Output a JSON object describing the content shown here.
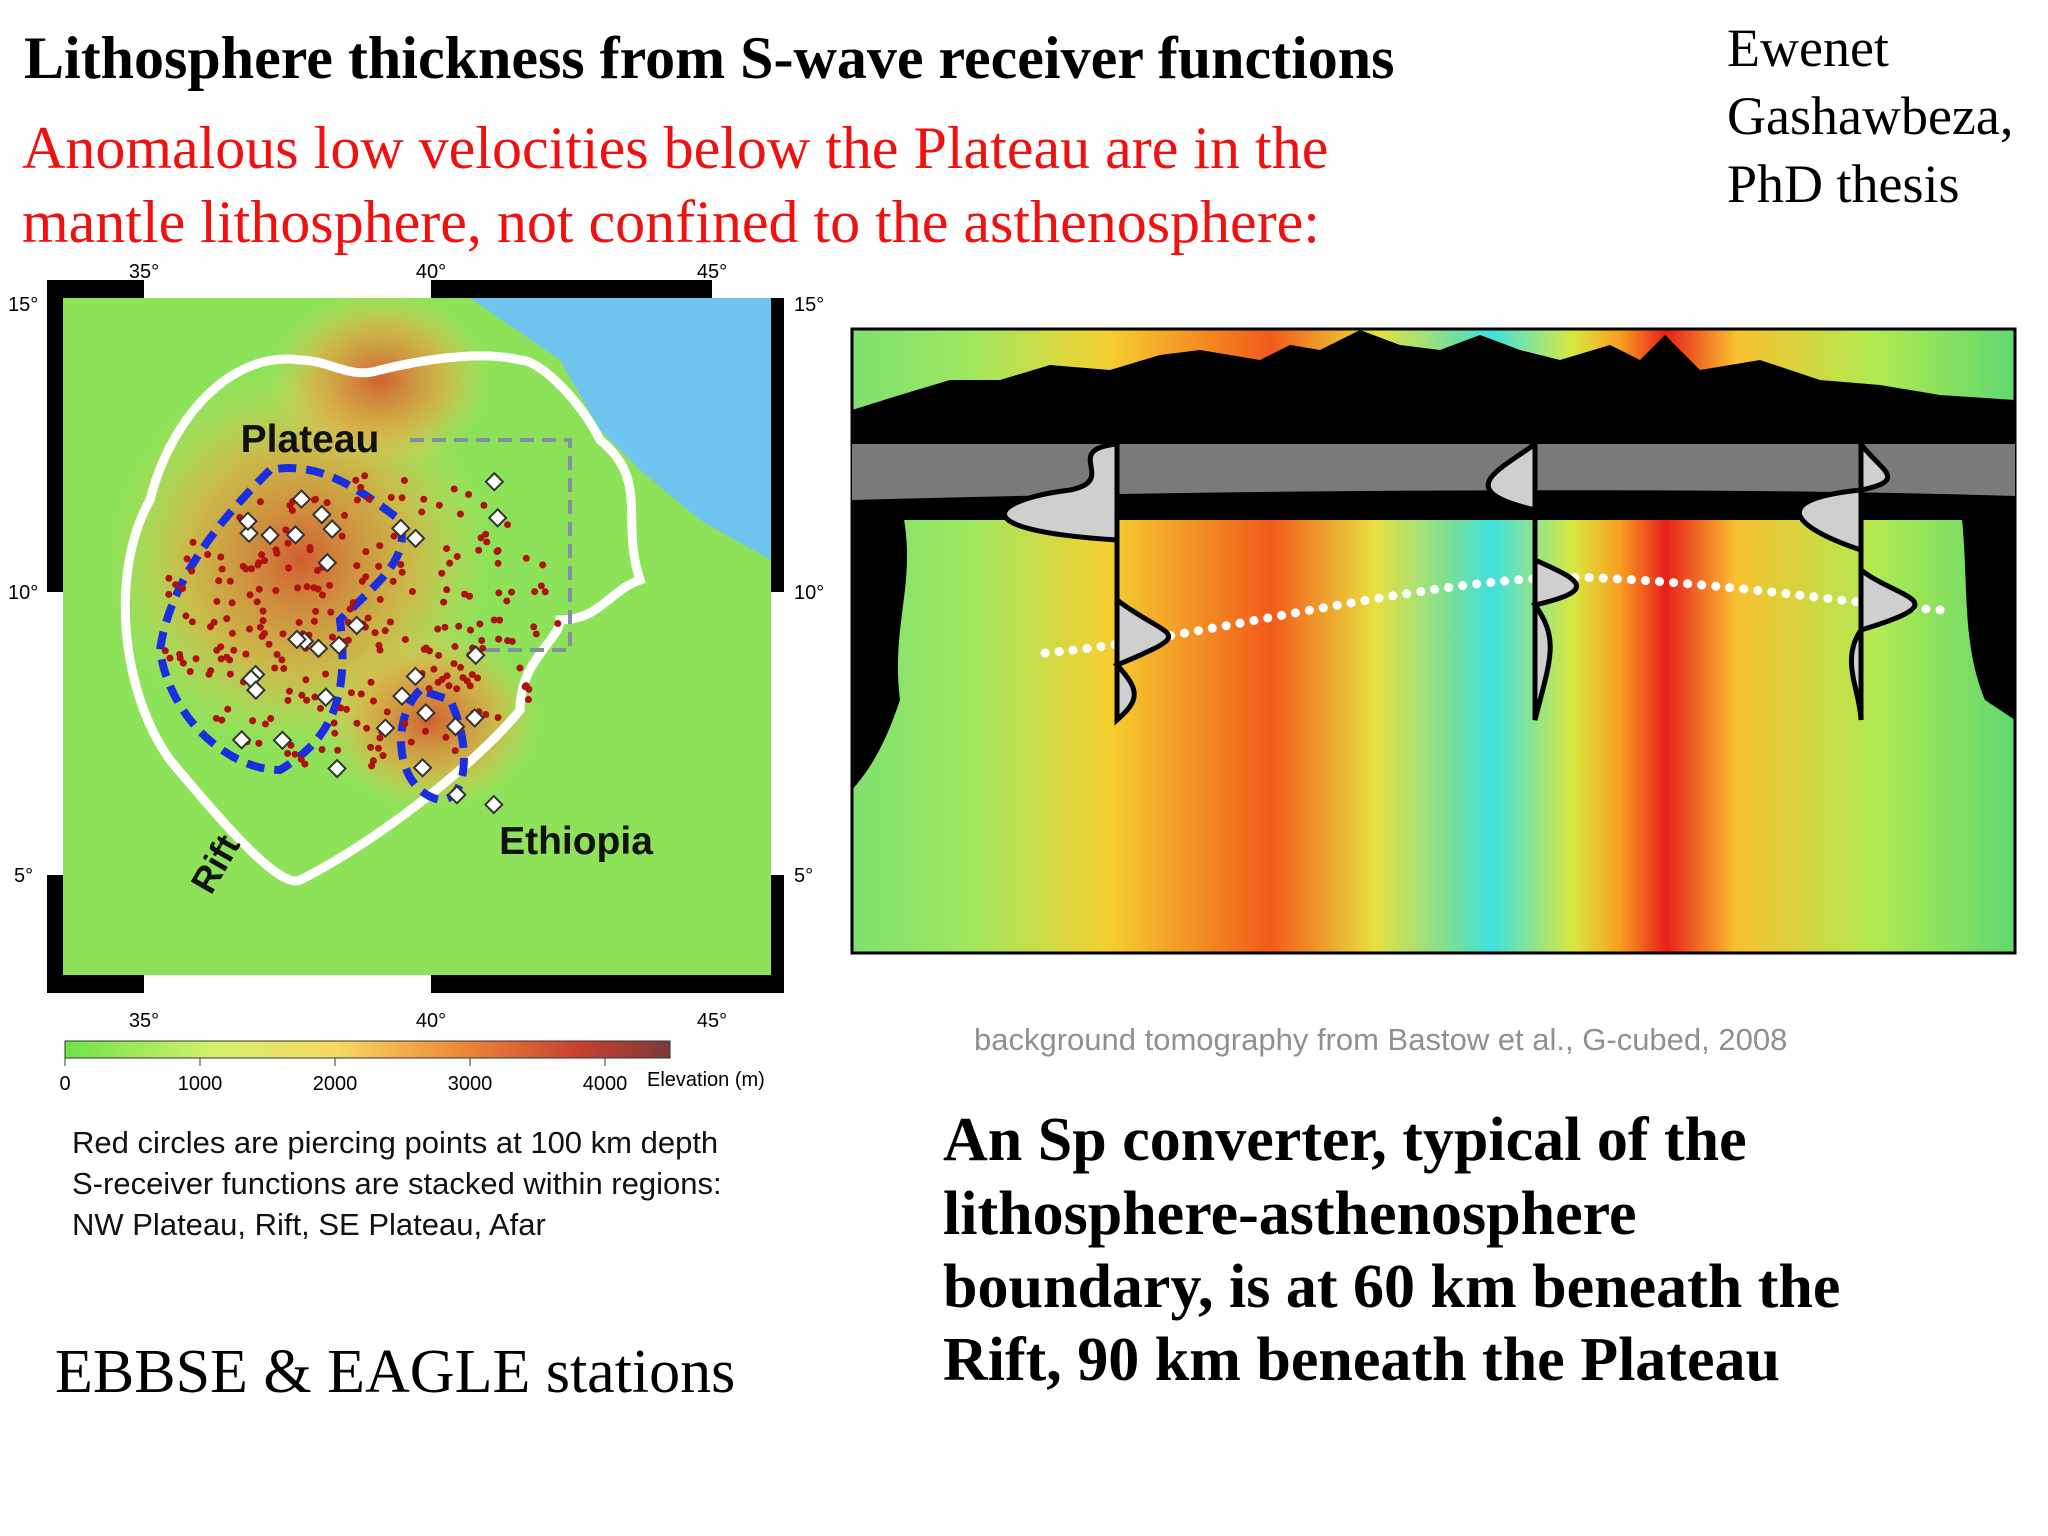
{
  "title": "Lithosphere thickness from S-wave receiver functions",
  "subtitle_lines": [
    "Anomalous low velocities below the Plateau are in the",
    "mantle lithosphere, not confined to the asthenosphere:"
  ],
  "credit_lines": [
    "Ewenet",
    "Gashawbeza,",
    "PhD thesis"
  ],
  "map": {
    "lon_labels": [
      "35°",
      "40°",
      "45°"
    ],
    "lat_labels": [
      "15°",
      "10°",
      "5°"
    ],
    "region_labels": [
      "Plateau",
      "Rift",
      "Ethiopia"
    ],
    "colorbar": {
      "ticks": [
        "0",
        "1000",
        "2000",
        "3000",
        "4000"
      ],
      "label": "Elevation (m)"
    },
    "caption_lines": [
      "Red circles are piercing points at 100 km depth",
      "S-receiver functions are stacked within regions:",
      "NW Plateau, Rift, SE Plateau, Afar"
    ],
    "stations": "EBBSE & EAGLE stations"
  },
  "tomography": {
    "credit": "background tomography from Bastow et al., G-cubed, 2008",
    "conclusion_lines": [
      "An Sp converter, typical of the",
      "lithosphere-asthenosphere",
      "boundary, is at 60 km beneath the",
      "Rift, 90 km beneath the Plateau"
    ]
  }
}
